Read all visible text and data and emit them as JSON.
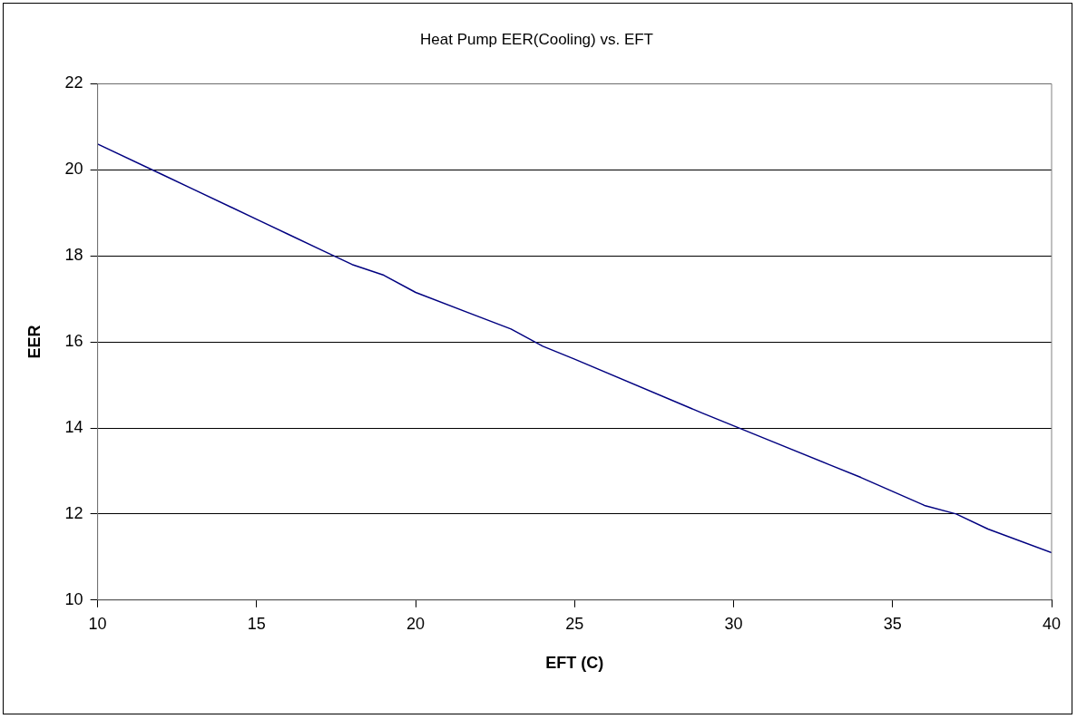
{
  "chart_data": {
    "type": "line",
    "title": "Heat Pump EER(Cooling) vs. EFT",
    "xlabel": "EFT (C)",
    "ylabel": "EER",
    "x": [
      10,
      12,
      13,
      15,
      16,
      17,
      18,
      19,
      20,
      23,
      24,
      25,
      29,
      31,
      33,
      34,
      36,
      37,
      38,
      40
    ],
    "series": [
      {
        "color": "#000080",
        "values": [
          20.6,
          19.9,
          19.55,
          18.85,
          18.5,
          18.15,
          17.8,
          17.55,
          17.15,
          16.3,
          15.9,
          15.6,
          14.35,
          13.75,
          13.15,
          12.85,
          12.2,
          12.0,
          11.65,
          11.1
        ]
      }
    ],
    "xlim": [
      10,
      40
    ],
    "xticks": [
      10,
      15,
      20,
      25,
      30,
      35,
      40
    ],
    "ylim": [
      10,
      22
    ],
    "yticks": [
      10,
      12,
      14,
      16,
      18,
      20,
      22
    ],
    "grid": "y",
    "legend": false,
    "marker": "none",
    "line_style": "solid"
  }
}
